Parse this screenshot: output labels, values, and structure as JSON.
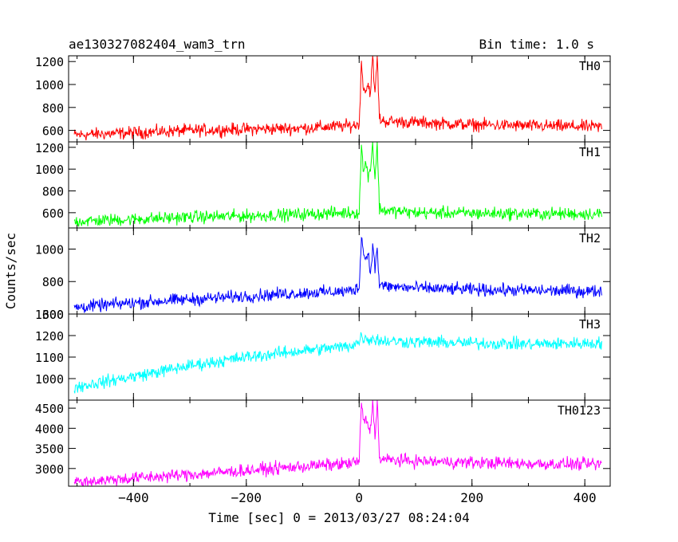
{
  "header": {
    "title": "ae130327082404_wam3_trn",
    "bin_time": "Bin time: 1.0 s"
  },
  "axes": {
    "xlabel": "Time [sec] 0 = 2013/03/27 08:24:04",
    "ylabel": "Counts/sec",
    "x_ticks": [
      "−400",
      "−200",
      "0",
      "200",
      "400"
    ]
  },
  "chart_data": [
    {
      "type": "line",
      "name": "TH0",
      "color": "#ff0000",
      "xlim": [
        -515,
        445
      ],
      "ylim": [
        500,
        1250
      ],
      "y_ticks": [
        600,
        800,
        1000,
        1200
      ],
      "x": [
        -505,
        -400,
        -300,
        -200,
        -100,
        -20,
        0,
        4,
        8,
        12,
        16,
        20,
        24,
        28,
        32,
        36,
        45,
        100,
        200,
        300,
        430
      ],
      "y": [
        560,
        580,
        600,
        610,
        620,
        640,
        650,
        1180,
        970,
        950,
        1000,
        930,
        1250,
        900,
        1250,
        700,
        680,
        670,
        650,
        640,
        630
      ]
    },
    {
      "type": "line",
      "name": "TH1",
      "color": "#00ff00",
      "xlim": [
        -515,
        445
      ],
      "ylim": [
        460,
        1250
      ],
      "y_ticks": [
        600,
        800,
        1000,
        1200
      ],
      "x": [
        -505,
        -400,
        -300,
        -200,
        -100,
        -20,
        0,
        4,
        8,
        12,
        16,
        20,
        24,
        28,
        32,
        36,
        45,
        100,
        200,
        300,
        430
      ],
      "y": [
        520,
        540,
        560,
        570,
        585,
        600,
        600,
        1200,
        980,
        1050,
        950,
        1000,
        1250,
        900,
        1250,
        640,
        620,
        600,
        595,
        590,
        590
      ]
    },
    {
      "type": "line",
      "name": "TH2",
      "color": "#0000ff",
      "xlim": [
        -515,
        445
      ],
      "ylim": [
        600,
        1130
      ],
      "y_ticks": [
        600,
        800,
        1000
      ],
      "x": [
        -505,
        -400,
        -300,
        -200,
        -100,
        -20,
        0,
        4,
        8,
        12,
        16,
        20,
        24,
        28,
        32,
        36,
        45,
        100,
        200,
        300,
        430
      ],
      "y": [
        640,
        670,
        690,
        710,
        730,
        740,
        760,
        1100,
        960,
        940,
        980,
        850,
        1020,
        880,
        1000,
        780,
        770,
        760,
        750,
        745,
        740
      ]
    },
    {
      "type": "line",
      "name": "TH3",
      "color": "#00ffff",
      "xlim": [
        -515,
        445
      ],
      "ylim": [
        900,
        1300
      ],
      "y_ticks": [
        1000,
        1100,
        1200,
        1300
      ],
      "x": [
        -505,
        -400,
        -300,
        -200,
        -100,
        -20,
        0,
        4,
        8,
        12,
        16,
        20,
        24,
        28,
        32,
        36,
        45,
        100,
        200,
        300,
        430
      ],
      "y": [
        960,
        1010,
        1060,
        1100,
        1130,
        1150,
        1170,
        1200,
        1190,
        1185,
        1180,
        1185,
        1190,
        1180,
        1185,
        1175,
        1175,
        1170,
        1165,
        1160,
        1165
      ]
    },
    {
      "type": "line",
      "name": "TH0123",
      "color": "#ff00ff",
      "xlim": [
        -515,
        445
      ],
      "ylim": [
        2560,
        4700
      ],
      "y_ticks": [
        3000,
        3500,
        4000,
        4500
      ],
      "x": [
        -505,
        -400,
        -300,
        -200,
        -100,
        -20,
        0,
        4,
        8,
        12,
        16,
        20,
        24,
        28,
        32,
        36,
        45,
        100,
        200,
        300,
        430
      ],
      "y": [
        2660,
        2760,
        2850,
        2950,
        3050,
        3120,
        3180,
        4650,
        4100,
        4300,
        4000,
        3950,
        4700,
        3800,
        4700,
        3250,
        3220,
        3180,
        3150,
        3120,
        3100
      ]
    }
  ]
}
